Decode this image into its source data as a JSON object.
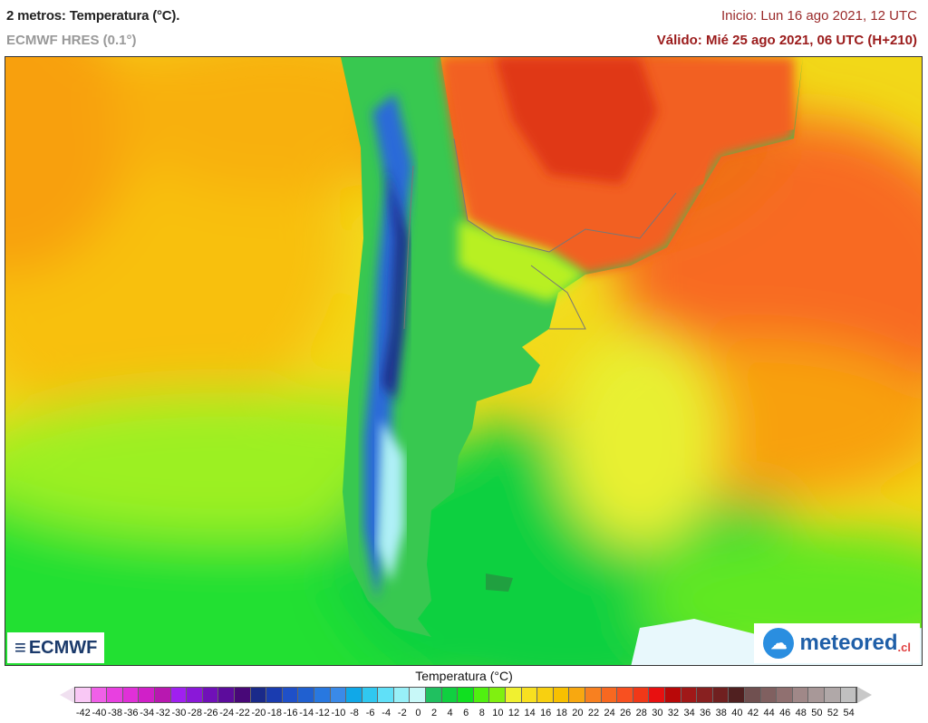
{
  "header": {
    "title": "2 metros: Temperatura (°C).",
    "model": "ECMWF HRES (0.1°)",
    "init": "Inicio: Lun 16 ago 2021, 12 UTC",
    "valid": "Válido: Mié 25 ago 2021, 06 UTC (H+210)"
  },
  "logos": {
    "left": "ECMWF",
    "right": "meteored",
    "right_tld": ".cl"
  },
  "colorbar": {
    "title": "Temperatura (°C)",
    "labels": [
      "-42",
      "-40",
      "-38",
      "-36",
      "-34",
      "-32",
      "-30",
      "-28",
      "-26",
      "-24",
      "-22",
      "-20",
      "-18",
      "-16",
      "-14",
      "-12",
      "-10",
      "-8",
      "-6",
      "-4",
      "-2",
      "0",
      "2",
      "4",
      "6",
      "8",
      "10",
      "12",
      "14",
      "16",
      "18",
      "20",
      "22",
      "24",
      "26",
      "28",
      "30",
      "32",
      "34",
      "36",
      "38",
      "40",
      "42",
      "44",
      "46",
      "48",
      "50",
      "52",
      "54"
    ],
    "colors": [
      "#f9c8f5",
      "#f060e8",
      "#e840e0",
      "#e030d8",
      "#d020c8",
      "#b818b0",
      "#a020f0",
      "#8a18d8",
      "#7010b8",
      "#5c0c9c",
      "#480878",
      "#1a2a8a",
      "#1a3cb0",
      "#1f50c8",
      "#2060d0",
      "#2878e0",
      "#3a8ae8",
      "#10a8e8",
      "#30c8f0",
      "#60e0f8",
      "#98f0f8",
      "#c8f8f8",
      "#20c060",
      "#10d040",
      "#10e020",
      "#50f010",
      "#80f010",
      "#f0f030",
      "#f8e020",
      "#f8d010",
      "#f8c000",
      "#f8a810",
      "#f88020",
      "#f86820",
      "#f85020",
      "#f03818",
      "#e81010",
      "#b80808",
      "#a01818",
      "#882020",
      "#702020",
      "#502020",
      "#705050",
      "#806060",
      "#907070",
      "#a08888",
      "#a89898",
      "#b0a8a8",
      "#c0c0c0"
    ]
  }
}
